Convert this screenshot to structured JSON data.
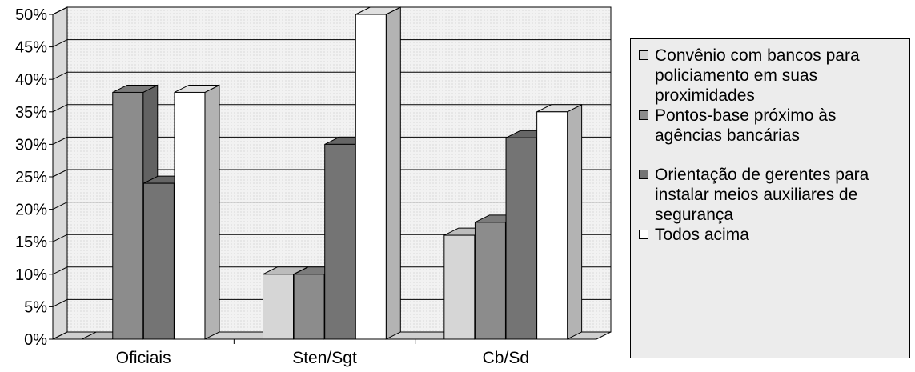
{
  "chart_data": {
    "type": "bar",
    "categories": [
      "Oficiais",
      "Sten/Sgt",
      "Cb/Sd"
    ],
    "series": [
      {
        "name": "Convênio com bancos para policiamento em suas proximidades",
        "values": [
          0,
          10,
          16
        ],
        "color": "#d6d6d6"
      },
      {
        "name": "Pontos-base próximo às agências bancárias",
        "values": [
          38,
          10,
          18
        ],
        "color": "#8c8c8c"
      },
      {
        "name": "Orientação de gerentes para instalar meios auxiliares de segurança",
        "values": [
          24,
          30,
          31
        ],
        "color": "#747474"
      },
      {
        "name": "Todos acima",
        "values": [
          38,
          50,
          35
        ],
        "color": "#ffffff"
      }
    ],
    "ylim": [
      0,
      50
    ],
    "yticks": [
      "0%",
      "5%",
      "10%",
      "15%",
      "20%",
      "25%",
      "30%",
      "35%",
      "40%",
      "45%",
      "50%"
    ],
    "grid": true,
    "legend_position": "right",
    "title": "",
    "xlabel": "",
    "ylabel": ""
  }
}
